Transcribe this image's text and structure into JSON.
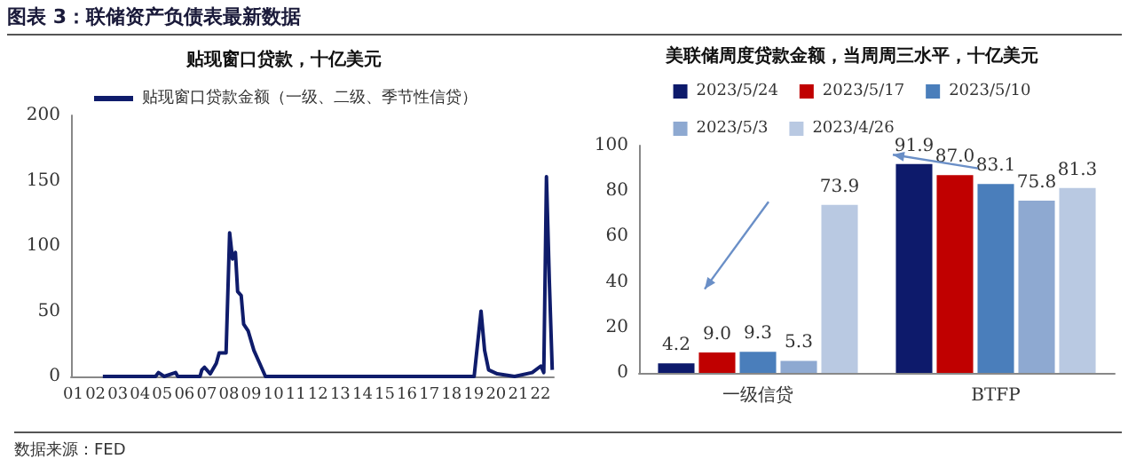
{
  "chart_data": [
    {
      "type": "line",
      "title": "贴现窗口贷款，十亿美元",
      "annotations": [
        "图表 3：联储资产负债表最新数据",
        "数据来源：FED"
      ],
      "marker": "none",
      "legend": "top left",
      "xlim": [
        0.9,
        22.6
      ],
      "xticks": [
        {
          "value": 1,
          "label": "01"
        },
        {
          "value": 2,
          "label": "02"
        },
        {
          "value": 3,
          "label": "03"
        },
        {
          "value": 4,
          "label": "04"
        },
        {
          "value": 5,
          "label": "05"
        },
        {
          "value": 6,
          "label": "06"
        },
        {
          "value": 7,
          "label": "07"
        },
        {
          "value": 8,
          "label": "08"
        },
        {
          "value": 9,
          "label": "09"
        },
        {
          "value": 10,
          "label": "10"
        },
        {
          "value": 11,
          "label": "11"
        },
        {
          "value": 12,
          "label": "12"
        },
        {
          "value": 13,
          "label": "13"
        },
        {
          "value": 14,
          "label": "14"
        },
        {
          "value": 15,
          "label": "15"
        },
        {
          "value": 16,
          "label": "16"
        },
        {
          "value": 17,
          "label": "17"
        },
        {
          "value": 18,
          "label": "18"
        },
        {
          "value": 19,
          "label": "19"
        },
        {
          "value": 20,
          "label": "20"
        },
        {
          "value": 21,
          "label": "21"
        },
        {
          "value": 22,
          "label": "22"
        }
      ],
      "ylim": [
        0,
        200
      ],
      "yticks": [
        0,
        50,
        100,
        150,
        200
      ],
      "series": [
        {
          "name": "贴现窗口贷款金额（一级、二级、季节性信贷）",
          "color": "#0f1c6b",
          "x": [
            2.33,
            4.7,
            4.83,
            5.09,
            5.6,
            5.7,
            6.7,
            6.78,
            6.9,
            7.16,
            7.43,
            7.56,
            7.87,
            8.03,
            8.16,
            8.29,
            8.39,
            8.55,
            8.66,
            8.86,
            9.12,
            9.38,
            9.64,
            19.02,
            19.33,
            19.49,
            19.67,
            20.06,
            20.84,
            21.63,
            22.02,
            22.15,
            22.27,
            22.4,
            22.53
          ],
          "values": [
            0,
            0,
            3,
            0,
            3,
            0,
            0,
            5,
            7,
            2,
            10,
            18,
            18,
            110,
            90,
            95,
            65,
            62,
            40,
            35,
            20,
            10,
            0,
            0,
            50,
            20,
            5,
            2,
            0,
            3,
            8,
            3,
            153,
            73,
            5
          ]
        }
      ]
    },
    {
      "type": "bar",
      "title": "美联储周度贷款金额，当周周三水平，十亿美元",
      "legend": "top",
      "categories": [
        "一级信贷",
        "BTFP"
      ],
      "ylim": [
        0,
        100
      ],
      "yticks": [
        0,
        20,
        40,
        60,
        80,
        100
      ],
      "series": [
        {
          "name": "2023/5/24",
          "color": "#0d1a6b",
          "values": [
            4.2,
            91.9
          ],
          "value_labels": [
            "4.2",
            "91.9"
          ]
        },
        {
          "name": "2023/5/17",
          "color": "#c00000",
          "values": [
            9.0,
            87.0
          ],
          "value_labels": [
            "9.0",
            "87.0"
          ]
        },
        {
          "name": "2023/5/10",
          "color": "#4a7ebb",
          "values": [
            9.3,
            83.1
          ],
          "value_labels": [
            "9.3",
            "83.1"
          ]
        },
        {
          "name": "2023/5/3",
          "color": "#8ea9d1",
          "values": [
            5.3,
            75.8
          ],
          "value_labels": [
            "5.3",
            "75.8"
          ]
        },
        {
          "name": "2023/4/26",
          "color": "#b9c9e2",
          "values": [
            73.9,
            81.3
          ],
          "value_labels": [
            "73.9",
            "81.3"
          ]
        }
      ]
    }
  ]
}
